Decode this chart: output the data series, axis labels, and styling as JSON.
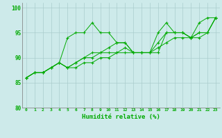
{
  "xlabel": "Humidité relative (%)",
  "background_color": "#cdeaea",
  "line_color": "#00aa00",
  "grid_color": "#aacccc",
  "xlim": [
    -0.5,
    23.5
  ],
  "ylim": [
    80,
    101
  ],
  "yticks": [
    80,
    85,
    90,
    95,
    100
  ],
  "xticks": [
    0,
    1,
    2,
    3,
    4,
    5,
    6,
    7,
    8,
    9,
    10,
    11,
    12,
    13,
    14,
    15,
    16,
    17,
    18,
    19,
    20,
    21,
    22,
    23
  ],
  "series": [
    [
      86,
      87,
      87,
      88,
      89,
      94,
      95,
      95,
      97,
      95,
      95,
      93,
      93,
      91,
      91,
      91,
      91,
      95,
      95,
      95,
      94,
      95,
      95,
      98
    ],
    [
      86,
      87,
      87,
      88,
      89,
      88,
      89,
      90,
      91,
      91,
      92,
      93,
      93,
      91,
      91,
      91,
      95,
      97,
      95,
      95,
      94,
      97,
      98,
      98
    ],
    [
      86,
      87,
      87,
      88,
      89,
      88,
      89,
      90,
      90,
      91,
      91,
      91,
      92,
      91,
      91,
      91,
      93,
      95,
      95,
      95,
      94,
      95,
      95,
      98
    ],
    [
      86,
      87,
      87,
      88,
      89,
      88,
      88,
      89,
      89,
      90,
      90,
      91,
      91,
      91,
      91,
      91,
      92,
      93,
      94,
      94,
      94,
      94,
      95,
      98
    ]
  ]
}
